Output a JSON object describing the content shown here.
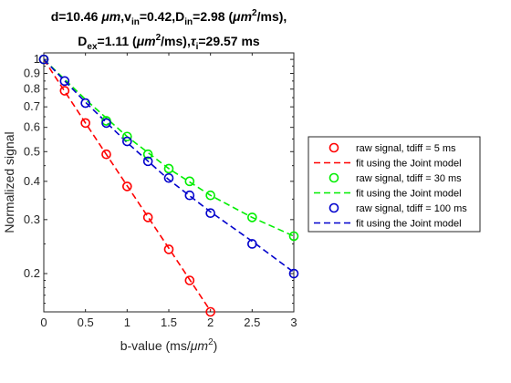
{
  "chart_data": {
    "type": "scatter",
    "title_parts": {
      "line1": {
        "d_label": "d=",
        "d_value": "10.46",
        "d_unit": "μm",
        "vin_label": "v",
        "vin_sub": "in",
        "vin_value": "=0.42",
        "din_label": "D",
        "din_sub": "in",
        "din_value": "=2.98 (",
        "din_unit_mu": "μm",
        "din_unit_sup": "2",
        "din_unit_rest": "/ms),"
      },
      "line2": {
        "dex_label": "D",
        "dex_sub": "ex",
        "dex_value": "=1.11 (",
        "dex_unit_mu": "μm",
        "dex_unit_sup": "2",
        "dex_unit_rest": "/ms),",
        "tau_label": "τ",
        "tau_sub": "i",
        "tau_value": "=29.57 ms"
      }
    },
    "xlabel_parts": {
      "text": "b-value (ms/",
      "mu": "μm",
      "sup": "2",
      "close": ")"
    },
    "ylabel": "Normalized signal",
    "xlim": [
      0,
      3
    ],
    "ylim": [
      0.15,
      1.05
    ],
    "yscale": "log",
    "x_ticks": [
      0,
      0.5,
      1,
      1.5,
      2,
      2.5,
      3
    ],
    "x_tick_labels": [
      "0",
      "0.5",
      "1",
      "1.5",
      "2",
      "2.5",
      "3"
    ],
    "y_ticks": [
      0.2,
      0.3,
      0.4,
      0.5,
      0.6,
      0.7,
      0.8,
      0.9,
      1
    ],
    "y_tick_labels": [
      "0.2",
      "0.3",
      "0.4",
      "0.5",
      "0.6",
      "0.7",
      "0.8",
      "0.9",
      "1"
    ],
    "y_minor_ticks": [
      0.16,
      0.17,
      0.18,
      0.19,
      0.25,
      0.35,
      0.45,
      0.55,
      0.65,
      0.75,
      0.85,
      0.95
    ],
    "grid": false,
    "legend_position": "outside-right",
    "series": [
      {
        "name": "raw signal, tdiff = 5 ms",
        "kind": "markers",
        "color": "#ff0000",
        "x": [
          0,
          0.25,
          0.5,
          0.75,
          1,
          1.25,
          1.5,
          1.75,
          2
        ],
        "y": [
          1.0,
          0.79,
          0.62,
          0.49,
          0.385,
          0.305,
          0.24,
          0.19,
          0.15
        ]
      },
      {
        "name": "fit using the Joint model",
        "kind": "line",
        "color": "#ff0000",
        "x": [
          0,
          0.5,
          1,
          1.5,
          2
        ],
        "y": [
          1.0,
          0.62,
          0.387,
          0.242,
          0.151
        ]
      },
      {
        "name": "raw signal, tdiff = 30 ms",
        "kind": "markers",
        "color": "#00ee00",
        "x": [
          0,
          0.75,
          1,
          1.25,
          1.5,
          1.75,
          2,
          2.5,
          3
        ],
        "y": [
          1.0,
          0.63,
          0.56,
          0.49,
          0.44,
          0.4,
          0.36,
          0.305,
          0.265
        ]
      },
      {
        "name": "fit using the Joint model",
        "kind": "line",
        "color": "#00ee00",
        "x": [
          0,
          0.5,
          1,
          1.5,
          2,
          2.5,
          3
        ],
        "y": [
          1.0,
          0.74,
          0.56,
          0.44,
          0.36,
          0.305,
          0.265
        ]
      },
      {
        "name": "raw signal, tdiff = 100 ms",
        "kind": "markers",
        "color": "#0000cc",
        "x": [
          0,
          0.25,
          0.5,
          0.75,
          1,
          1.25,
          1.5,
          1.75,
          2,
          2.5,
          3
        ],
        "y": [
          1.0,
          0.85,
          0.72,
          0.62,
          0.54,
          0.465,
          0.41,
          0.36,
          0.315,
          0.25,
          0.2
        ]
      },
      {
        "name": "fit using the Joint model",
        "kind": "line",
        "color": "#0000cc",
        "x": [
          0,
          0.5,
          1,
          1.5,
          2,
          2.5,
          3
        ],
        "y": [
          1.0,
          0.725,
          0.535,
          0.405,
          0.318,
          0.255,
          0.202
        ]
      }
    ]
  }
}
